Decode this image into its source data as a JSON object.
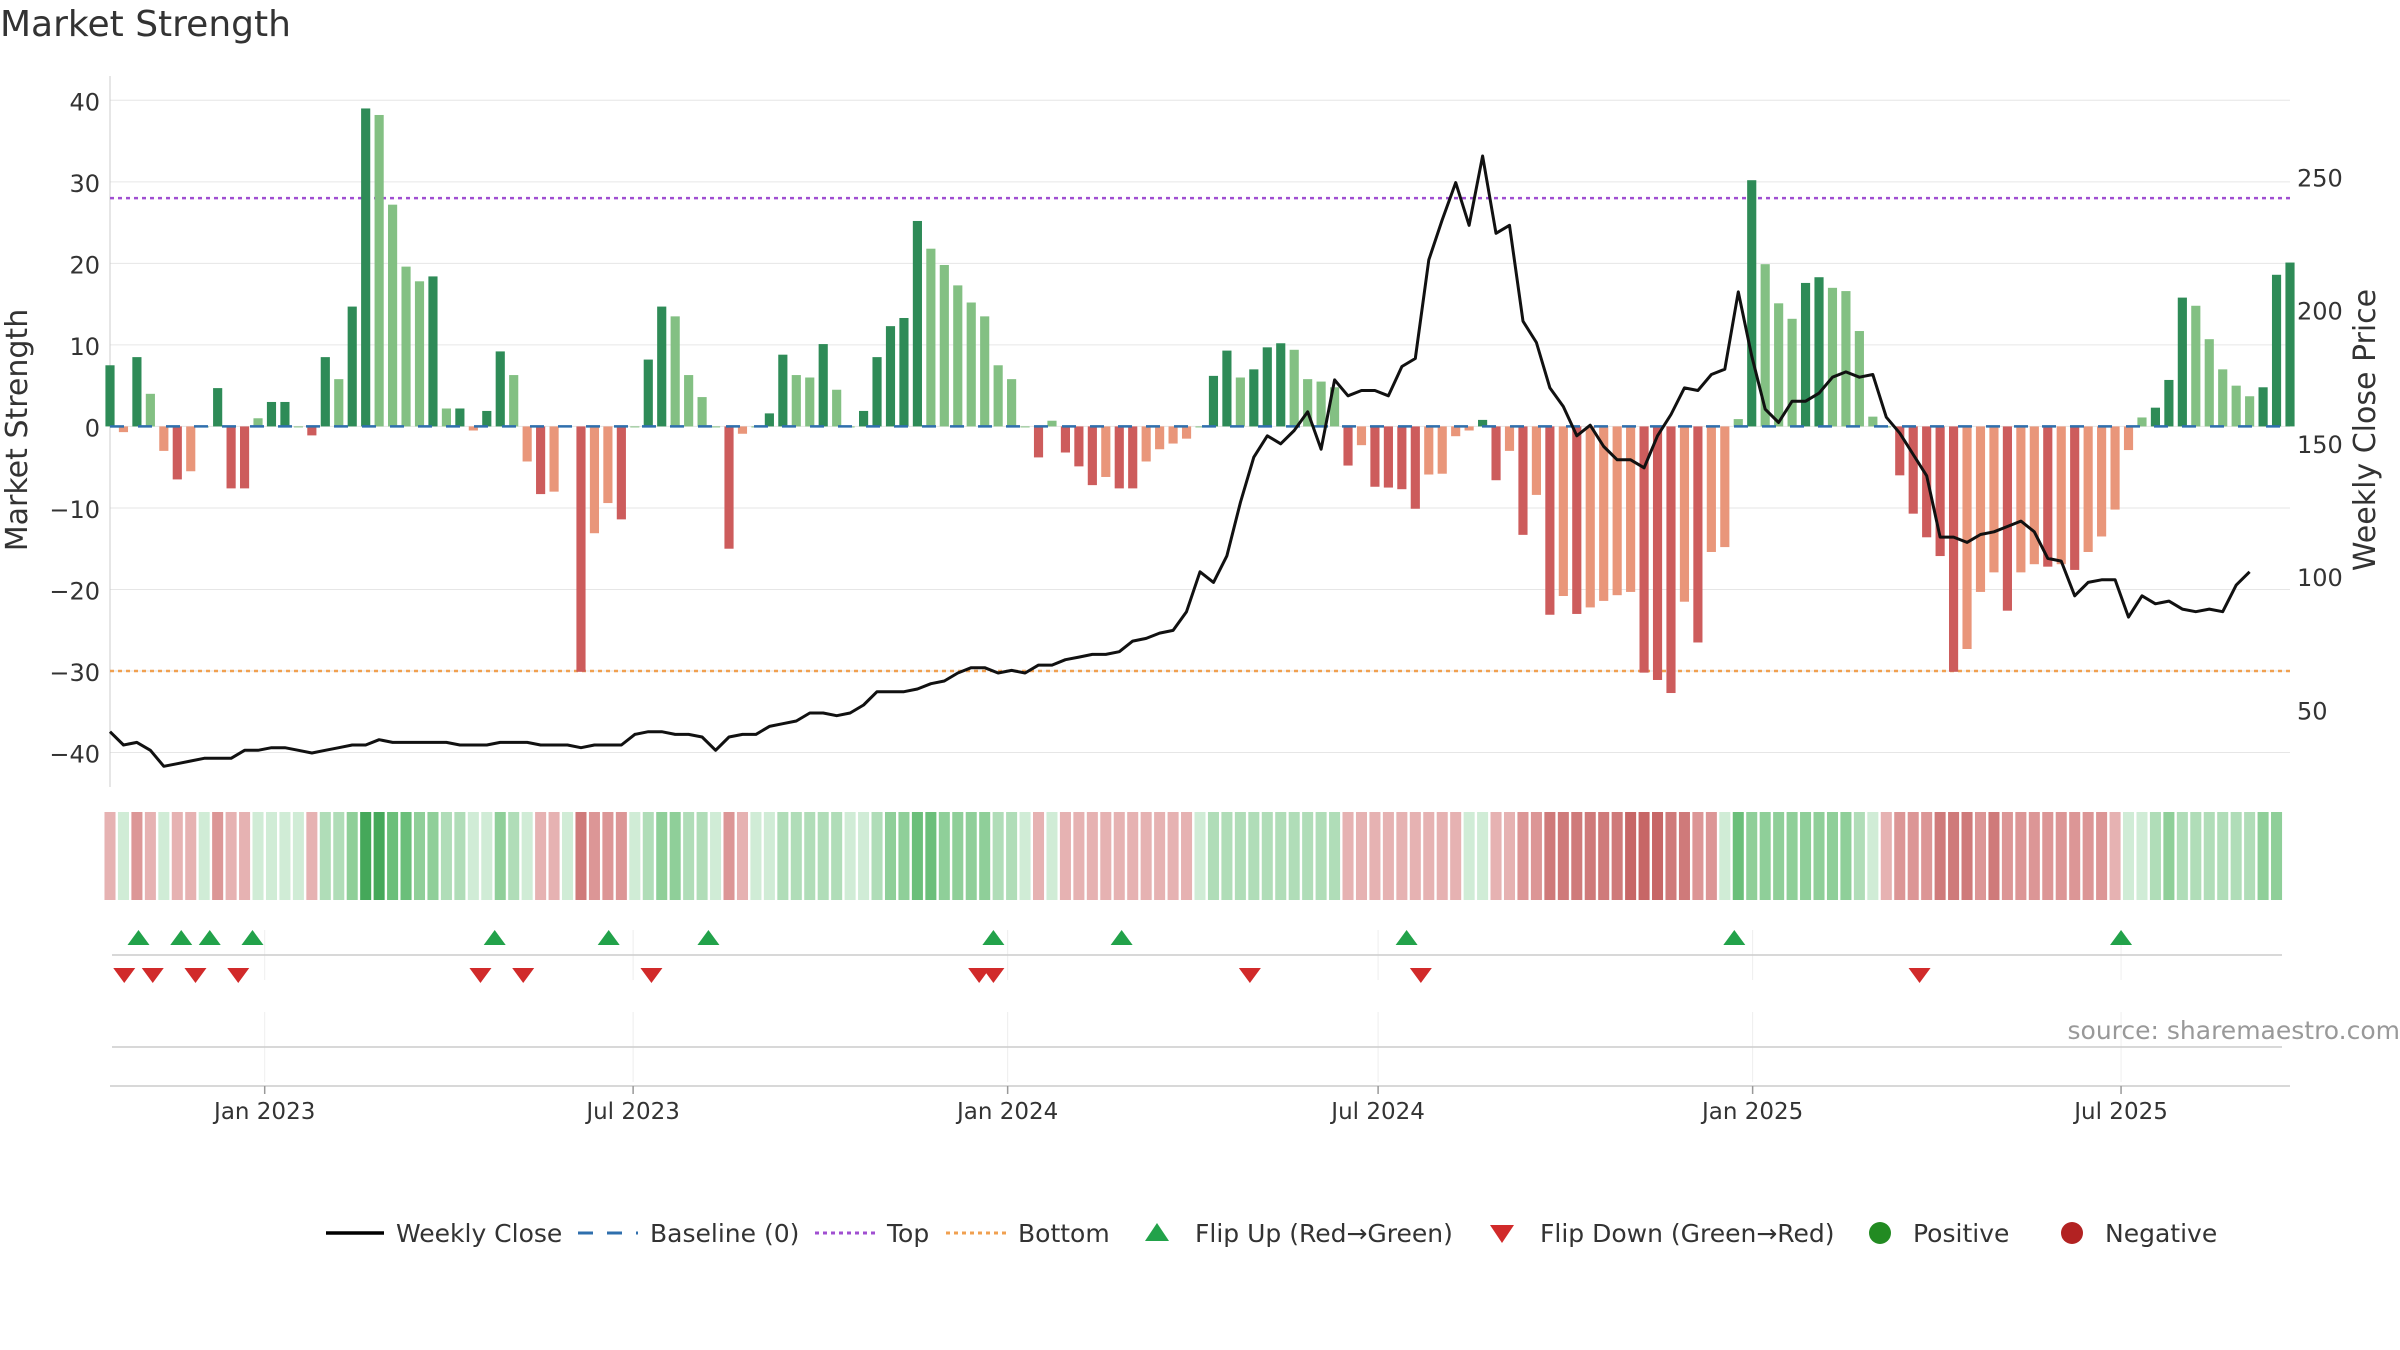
{
  "chart_data": {
    "type": "bar",
    "title": "Market Strength",
    "source": "source: sharemaestro.com",
    "ylabel": "Market Strength",
    "ylabel_right": "Weekly Close Price",
    "ylim": [
      -43,
      42
    ],
    "yticks": [
      40,
      30,
      20,
      10,
      0,
      -10,
      -20,
      -30,
      -40
    ],
    "ylim_right": [
      25,
      285
    ],
    "yticks_right": [
      250,
      200,
      150,
      100,
      50
    ],
    "x_start": "2022-10-17",
    "x_end": "2025-09-22",
    "xticks": [
      {
        "date": "2023-01-01",
        "label": "Jan 2023"
      },
      {
        "date": "2023-07-01",
        "label": "Jul 2023"
      },
      {
        "date": "2024-01-01",
        "label": "Jan 2024"
      },
      {
        "date": "2024-07-01",
        "label": "Jul 2024"
      },
      {
        "date": "2025-01-01",
        "label": "Jan 2025"
      },
      {
        "date": "2025-07-01",
        "label": "Jul 2025"
      }
    ],
    "reference_lines": [
      {
        "name": "Top",
        "value": 28,
        "color": "#a04fd1"
      },
      {
        "name": "Bottom",
        "value": -30,
        "color": "#f0a050"
      },
      {
        "name": "Baseline (0)",
        "value": 0,
        "color": "#2f6fad"
      }
    ],
    "series": [
      {
        "name": "Market Strength",
        "type": "bar",
        "values": [
          7.5,
          -0.7,
          8.5,
          4,
          -3,
          -6.5,
          -5.5,
          0,
          4.7,
          -7.6,
          -7.6,
          1,
          3,
          3,
          0,
          -1.1,
          8.5,
          5.8,
          14.7,
          39,
          38.2,
          27.2,
          19.6,
          17.8,
          18.4,
          2.2,
          2.2,
          -0.5,
          1.9,
          9.2,
          6.3,
          -4.3,
          -8.3,
          -8,
          0,
          -30.1,
          -13.1,
          -9.4,
          -11.4,
          0,
          8.2,
          14.7,
          13.5,
          6.3,
          3.6,
          0,
          -15,
          -0.9,
          0,
          1.6,
          8.8,
          6.3,
          6,
          10.1,
          4.5,
          0,
          1.9,
          8.5,
          12.3,
          13.3,
          25.2,
          21.8,
          19.8,
          17.3,
          15.2,
          13.5,
          7.5,
          5.8,
          0,
          -3.8,
          0.7,
          -3.2,
          -4.9,
          -7.2,
          -6.2,
          -7.6,
          -7.6,
          -4.3,
          -2.8,
          -2.1,
          -1.5,
          0,
          6.2,
          9.3,
          6,
          7,
          9.7,
          10.2,
          9.4,
          5.8,
          5.5,
          4.8,
          -4.8,
          -2.3,
          -7.4,
          -7.5,
          -7.7,
          -10.1,
          -5.9,
          -5.8,
          -1.2,
          -0.5,
          0.8,
          -6.6,
          -3,
          -13.3,
          -8.4,
          -23.1,
          -20.8,
          -23,
          -22.2,
          -21.4,
          -20.7,
          -20.3,
          -30.2,
          -31.1,
          -32.7,
          -21.5,
          -26.5,
          -15.4,
          -14.8,
          0.9,
          30.2,
          19.9,
          15.1,
          13.2,
          17.6,
          18.3,
          17,
          16.6,
          11.7,
          1.2,
          0,
          -6,
          -10.7,
          -13.6,
          -15.9,
          -30.1,
          -27.3,
          -20.3,
          -17.9,
          -22.6,
          -17.9,
          -16.9,
          -17.2,
          -16.9,
          -17.6,
          -15.4,
          -13.5,
          -10.2,
          -2.9,
          1.1,
          2.3,
          5.7,
          15.8,
          14.8,
          10.7,
          7,
          5,
          3.7,
          4.8,
          18.6,
          20.1
        ]
      },
      {
        "name": "Weekly Close",
        "type": "line",
        "color": "#000000",
        "values": [
          42,
          37,
          38,
          35,
          29,
          30,
          31,
          32,
          32,
          32,
          35,
          35,
          36,
          36,
          35,
          34,
          35,
          36,
          37,
          37,
          39,
          38,
          38,
          38,
          38,
          38,
          37,
          37,
          37,
          38,
          38,
          38,
          37,
          37,
          37,
          36,
          37,
          37,
          37,
          41,
          42,
          42,
          41,
          41,
          40,
          35,
          40,
          41,
          41,
          44,
          45,
          46,
          49,
          49,
          48,
          49,
          52,
          57,
          57,
          57,
          58,
          60,
          61,
          64,
          66,
          66,
          64,
          65,
          64,
          67,
          67,
          69,
          70,
          71,
          71,
          72,
          76,
          77,
          79,
          80,
          87,
          102,
          98,
          108,
          128,
          145,
          153,
          150,
          155,
          162,
          148,
          174,
          168,
          170,
          170,
          168,
          179,
          182,
          219,
          234,
          248,
          232,
          258,
          229,
          232,
          196,
          188,
          171,
          164,
          153,
          157,
          149,
          144,
          144,
          141,
          153,
          161,
          171,
          170,
          176,
          178,
          207,
          183,
          163,
          158,
          166,
          166,
          169,
          175,
          177,
          175,
          176,
          160,
          154,
          146,
          138,
          115,
          115,
          113,
          116,
          117,
          119,
          121,
          117,
          107,
          106,
          93,
          98,
          99,
          99,
          85,
          93,
          90,
          91,
          88,
          87,
          88,
          87,
          97,
          102
        ]
      },
      {
        "name": "Strength Band",
        "type": "heatmap",
        "values": [
          -1,
          0,
          -2,
          -1,
          0,
          -1,
          -1,
          0,
          -2,
          -1,
          -1,
          0,
          0,
          0,
          0,
          -1,
          1,
          1,
          2,
          4,
          4,
          3,
          3,
          2,
          2,
          1,
          1,
          0,
          0,
          2,
          1,
          0,
          -1,
          -1,
          0,
          -3,
          -2,
          -2,
          -2,
          0,
          1,
          2,
          2,
          1,
          1,
          0,
          -2,
          -1,
          0,
          0,
          1,
          1,
          1,
          1,
          1,
          0,
          0,
          1,
          2,
          2,
          3,
          3,
          2,
          2,
          2,
          2,
          1,
          1,
          0,
          -1,
          0,
          -1,
          -1,
          -1,
          -1,
          -1,
          -1,
          -1,
          -1,
          -1,
          -1,
          0,
          1,
          1,
          1,
          1,
          1,
          1,
          1,
          1,
          1,
          1,
          -1,
          -1,
          -1,
          -1,
          -1,
          -1,
          -1,
          -1,
          -1,
          0,
          0,
          -1,
          -1,
          -2,
          -2,
          -3,
          -3,
          -3,
          -3,
          -3,
          -3,
          -4,
          -4,
          -4,
          -3,
          -3,
          -2,
          -2,
          0,
          3,
          2,
          2,
          2,
          2,
          2,
          2,
          2,
          2,
          1,
          0,
          -1,
          -2,
          -2,
          -2,
          -3,
          -3,
          -3,
          -2,
          -3,
          -2,
          -2,
          -2,
          -2,
          -2,
          -2,
          -2,
          -2,
          -1,
          0,
          0,
          1,
          2,
          1,
          1,
          1,
          1,
          1,
          1,
          2,
          2
        ]
      },
      {
        "name": "Flip Up (Red→Green)",
        "type": "scatter",
        "marker": "triangle-up",
        "color": "#22a24a",
        "x": [
          "2022-10-31",
          "2022-11-21",
          "2022-12-05",
          "2022-12-26",
          "2023-04-24",
          "2023-06-19",
          "2023-08-07",
          "2023-12-25",
          "2024-02-26",
          "2024-07-15",
          "2024-12-23",
          "2025-07-01"
        ]
      },
      {
        "name": "Flip Down (Green→Red)",
        "type": "scatter",
        "marker": "triangle-down",
        "color": "#d12a2a",
        "x": [
          "2022-10-24",
          "2022-11-07",
          "2022-11-28",
          "2022-12-19",
          "2023-04-17",
          "2023-05-08",
          "2023-07-10",
          "2023-12-18",
          "2023-12-25",
          "2024-04-29",
          "2024-07-22",
          "2025-03-24"
        ]
      }
    ],
    "colors": {
      "strong_green": "#2e8b57",
      "light_green": "#83c083",
      "strong_red": "#cd5c5c",
      "light_red": "#e9967a",
      "band_green": [
        "#d0ecd6",
        "#b0ddb8",
        "#8fcf99",
        "#6bbf7a",
        "#45a85a"
      ],
      "band_red": [
        "#f0d0d0",
        "#e6b2b2",
        "#dc9696",
        "#cf7a7a",
        "#c76666"
      ]
    },
    "legend": {
      "position": "bottom",
      "items": [
        {
          "label": "Weekly Close",
          "symbol": "line",
          "color": "#000000"
        },
        {
          "label": "Baseline (0)",
          "symbol": "dash",
          "color": "#2f6fad"
        },
        {
          "label": "Top",
          "symbol": "dot",
          "color": "#a04fd1"
        },
        {
          "label": "Bottom",
          "symbol": "dot",
          "color": "#f0a050"
        },
        {
          "label": "Flip Up (Red→Green)",
          "symbol": "triangle-up",
          "color": "#22a24a"
        },
        {
          "label": "Flip Down (Green→Red)",
          "symbol": "triangle-down",
          "color": "#d12a2a"
        },
        {
          "label": "Positive",
          "symbol": "circle",
          "color": "#228b22"
        },
        {
          "label": "Negative",
          "symbol": "circle",
          "color": "#b22222"
        }
      ]
    }
  }
}
